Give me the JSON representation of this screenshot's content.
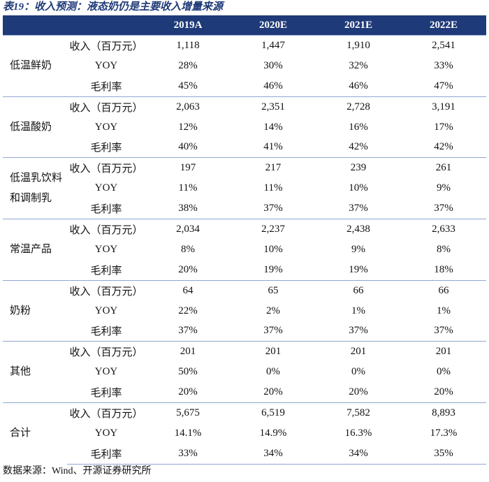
{
  "title": "表19：收入预测：液态奶仍是主要收入增量来源",
  "header": [
    "2019A",
    "2020E",
    "2021E",
    "2022E"
  ],
  "groups": [
    {
      "label": "低温鲜奶",
      "rows": [
        {
          "metric": "收入（百万元）",
          "values": [
            "1,118",
            "1,447",
            "1,910",
            "2,541"
          ]
        },
        {
          "metric": "YOY",
          "values": [
            "28%",
            "30%",
            "32%",
            "33%"
          ]
        },
        {
          "metric": "毛利率",
          "values": [
            "45%",
            "46%",
            "46%",
            "47%"
          ]
        }
      ]
    },
    {
      "label": "低温酸奶",
      "rows": [
        {
          "metric": "收入（百万元）",
          "values": [
            "2,063",
            "2,351",
            "2,728",
            "3,191"
          ]
        },
        {
          "metric": "YOY",
          "values": [
            "12%",
            "14%",
            "16%",
            "17%"
          ]
        },
        {
          "metric": "毛利率",
          "values": [
            "40%",
            "41%",
            "42%",
            "42%"
          ]
        }
      ]
    },
    {
      "label": "低温乳饮料和调制乳",
      "rows": [
        {
          "metric": "收入（百万元）",
          "values": [
            "197",
            "217",
            "239",
            "261"
          ]
        },
        {
          "metric": "YOY",
          "values": [
            "11%",
            "11%",
            "10%",
            "9%"
          ]
        },
        {
          "metric": "毛利率",
          "values": [
            "38%",
            "37%",
            "37%",
            "37%"
          ]
        }
      ]
    },
    {
      "label": "常温产品",
      "rows": [
        {
          "metric": "收入（百万元）",
          "values": [
            "2,034",
            "2,237",
            "2,438",
            "2,633"
          ]
        },
        {
          "metric": "YOY",
          "values": [
            "8%",
            "10%",
            "9%",
            "8%"
          ]
        },
        {
          "metric": "毛利率",
          "values": [
            "20%",
            "19%",
            "19%",
            "18%"
          ]
        }
      ]
    },
    {
      "label": "奶粉",
      "rows": [
        {
          "metric": "收入（百万元）",
          "values": [
            "64",
            "65",
            "66",
            "66"
          ]
        },
        {
          "metric": "YOY",
          "values": [
            "22%",
            "2%",
            "1%",
            "1%"
          ]
        },
        {
          "metric": "毛利率",
          "values": [
            "37%",
            "37%",
            "37%",
            "37%"
          ]
        }
      ]
    },
    {
      "label": "其他",
      "rows": [
        {
          "metric": "收入（百万元）",
          "values": [
            "201",
            "201",
            "201",
            "201"
          ]
        },
        {
          "metric": "YOY",
          "values": [
            "50%",
            "0%",
            "0%",
            "0%"
          ]
        },
        {
          "metric": "毛利率",
          "values": [
            "20%",
            "20%",
            "20%",
            "20%"
          ]
        }
      ]
    },
    {
      "label": "合计",
      "rows": [
        {
          "metric": "收入（百万元）",
          "values": [
            "5,675",
            "6,519",
            "7,582",
            "8,893"
          ]
        },
        {
          "metric": "YOY",
          "values": [
            "14.1%",
            "14.9%",
            "16.3%",
            "17.3%"
          ]
        },
        {
          "metric": "毛利率",
          "values": [
            "33%",
            "34%",
            "34%",
            "35%"
          ]
        }
      ]
    }
  ],
  "source": "数据来源：Wind、开源证券研究所"
}
